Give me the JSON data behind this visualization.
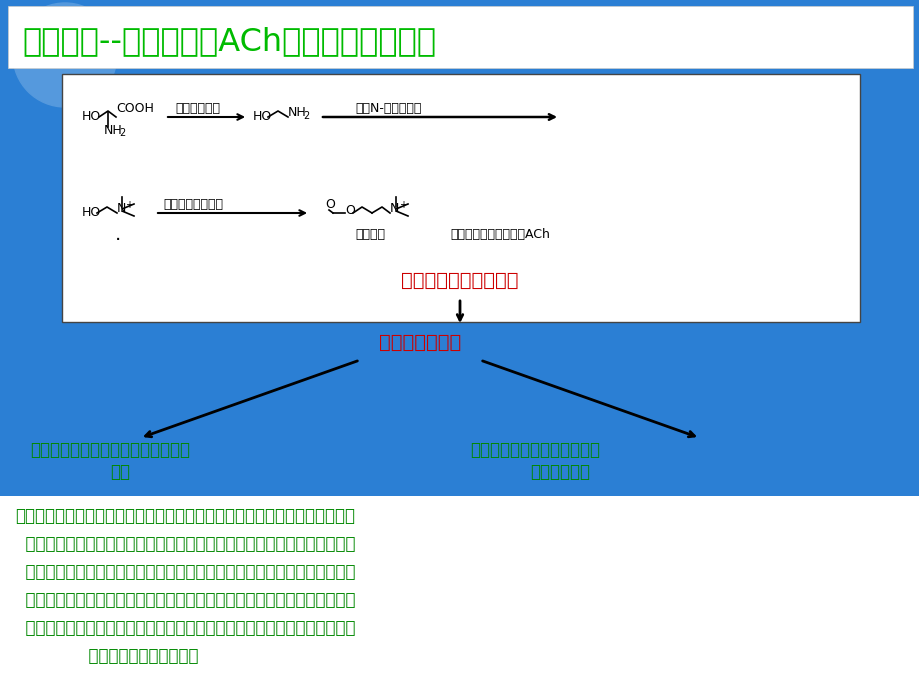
{
  "title": "化学递质--乙酰胆碱（ACh）生物合成及代谢",
  "title_color": "#00bb00",
  "title_bg": "#ffffff",
  "slide_bg": "#2b7fd4",
  "box_bg": "#ffffff",
  "red_text_color": "#cc0000",
  "green_text_color": "#008800",
  "black_text_color": "#111111",
  "synth_label": "突触前神经细胞内合成",
  "release_label": "释放到突触间隙",
  "left_bottom_line1": "部分被胆碱酯酶水解为胆碱和乙酸，",
  "left_bottom_line2": "失活",
  "right_bottom_line1": "与突触后膜上胆碱受体结合，",
  "right_bottom_line2": "产生生理作用",
  "enzyme1": "丝氨酸脱羧酶",
  "enzyme2": "胆碱N-甲基转移酶",
  "enzyme3": "胆碱乙酰基转移酶",
  "ach_label": "乙酰胆碱",
  "synth_ach_label": "突触前神经细胞内合成ACh",
  "para_lines": [
    "运动神经、交感神经节前神经元和全部副交感神经的化学递质均为乙酰胆碱。",
    "  乙酰胆碱在突触前神经细胞内合成。神经冲动使之释放并作用于突触后膜上",
    "  的乙酰胆碱受体，产生效应。之后，乙酰胆碱分子被乙酰胆碱酯酶催化水解",
    "  为胆碱和乙酸而失活。胆碱经主动再摄取返回突触前神经末梢，再为乙酰胆",
    "  碱合成所用。所以理论上其中每一个环节都可能经药物的影响达到增强或减",
    "              弱乙酰胆碱作用的结果。"
  ]
}
